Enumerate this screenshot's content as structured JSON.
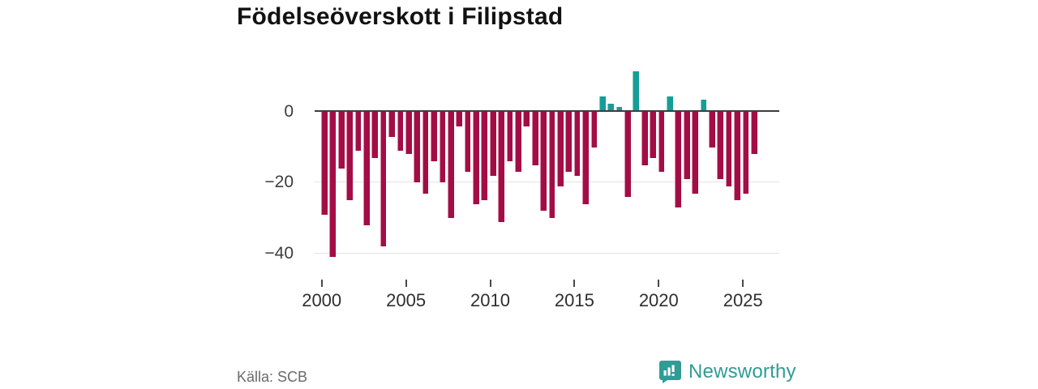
{
  "title": "Födelseöverskott i Filipstad",
  "footer": {
    "source": "Källa: SCB",
    "brand": "Newsworthy"
  },
  "chart_data": {
    "type": "bar",
    "title": "Födelseöverskott i Filipstad",
    "xlabel": "",
    "ylabel": "",
    "x_unit": "half-year",
    "ylim": [
      -44,
      13
    ],
    "grid": "horizontal",
    "legend": "none",
    "y_ticks": [
      {
        "value": 0,
        "label": "0"
      },
      {
        "value": -20,
        "label": "−20"
      },
      {
        "value": -40,
        "label": "−40"
      }
    ],
    "x_ticks": [
      {
        "year": 2000,
        "label": "2000"
      },
      {
        "year": 2005,
        "label": "2005"
      },
      {
        "year": 2010,
        "label": "2010"
      },
      {
        "year": 2015,
        "label": "2015"
      },
      {
        "year": 2020,
        "label": "2020"
      },
      {
        "year": 2025,
        "label": "2025"
      }
    ],
    "colors": {
      "negative": "#a30d45",
      "positive": "#169e96"
    },
    "series": [
      {
        "period": "2000 H1",
        "value": -29
      },
      {
        "period": "2000 H2",
        "value": -41
      },
      {
        "period": "2001 H1",
        "value": -16
      },
      {
        "period": "2001 H2",
        "value": -25
      },
      {
        "period": "2002 H1",
        "value": -11
      },
      {
        "period": "2002 H2",
        "value": -32
      },
      {
        "period": "2003 H1",
        "value": -13
      },
      {
        "period": "2003 H2",
        "value": -38
      },
      {
        "period": "2004 H1",
        "value": -7
      },
      {
        "period": "2004 H2",
        "value": -11
      },
      {
        "period": "2005 H1",
        "value": -12
      },
      {
        "period": "2005 H2",
        "value": -20
      },
      {
        "period": "2006 H1",
        "value": -23
      },
      {
        "period": "2006 H2",
        "value": -14
      },
      {
        "period": "2007 H1",
        "value": -20
      },
      {
        "period": "2007 H2",
        "value": -30
      },
      {
        "period": "2008 H1",
        "value": -4
      },
      {
        "period": "2008 H2",
        "value": -17
      },
      {
        "period": "2009 H1",
        "value": -26
      },
      {
        "period": "2009 H2",
        "value": -25
      },
      {
        "period": "2010 H1",
        "value": -18
      },
      {
        "period": "2010 H2",
        "value": -31
      },
      {
        "period": "2011 H1",
        "value": -14
      },
      {
        "period": "2011 H2",
        "value": -17
      },
      {
        "period": "2012 H1",
        "value": -4
      },
      {
        "period": "2012 H2",
        "value": -15
      },
      {
        "period": "2013 H1",
        "value": -28
      },
      {
        "period": "2013 H2",
        "value": -30
      },
      {
        "period": "2014 H1",
        "value": -21
      },
      {
        "period": "2014 H2",
        "value": -17
      },
      {
        "period": "2015 H1",
        "value": -18
      },
      {
        "period": "2015 H2",
        "value": -26
      },
      {
        "period": "2016 H1",
        "value": -10
      },
      {
        "period": "2016 H2",
        "value": 4
      },
      {
        "period": "2017 H1",
        "value": 2
      },
      {
        "period": "2017 H2",
        "value": 1
      },
      {
        "period": "2018 H1",
        "value": -24
      },
      {
        "period": "2018 H2",
        "value": 11
      },
      {
        "period": "2019 H1",
        "value": -15
      },
      {
        "period": "2019 H2",
        "value": -13
      },
      {
        "period": "2020 H1",
        "value": -17
      },
      {
        "period": "2020 H2",
        "value": 4
      },
      {
        "period": "2021 H1",
        "value": -27
      },
      {
        "period": "2021 H2",
        "value": -19
      },
      {
        "period": "2022 H1",
        "value": -23
      },
      {
        "period": "2022 H2",
        "value": 3
      },
      {
        "period": "2023 H1",
        "value": -10
      },
      {
        "period": "2023 H2",
        "value": -19
      },
      {
        "period": "2024 H1",
        "value": -21
      },
      {
        "period": "2024 H2",
        "value": -25
      },
      {
        "period": "2025 H1",
        "value": -23
      },
      {
        "period": "2025 H2",
        "value": -12
      }
    ]
  }
}
